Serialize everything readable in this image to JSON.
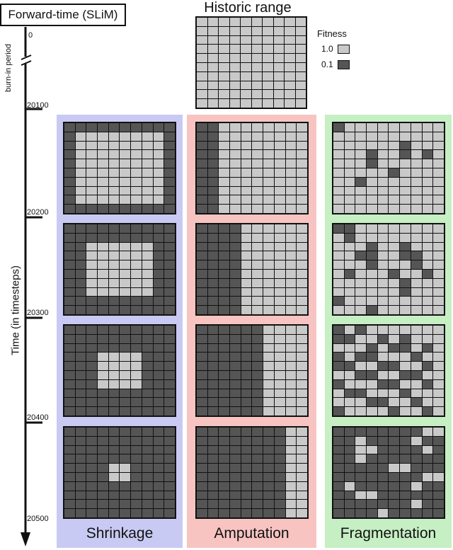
{
  "title": "Forward-time (SLiM)",
  "axis": {
    "label": "Time (in timesteps)",
    "burn_in": "burn-in period",
    "ticks": [
      "0",
      "20100",
      "20200",
      "20300",
      "20400",
      "20500"
    ]
  },
  "historic": {
    "title": "Historic range"
  },
  "legend": {
    "title": "Fitness",
    "items": [
      {
        "label": "1.0",
        "color": "#c9c9c9"
      },
      {
        "label": "0.1",
        "color": "#555555"
      }
    ]
  },
  "colors": {
    "shrinkage_bg": "#c9caf3",
    "amputation_bg": "#f7c4c2",
    "fragmentation_bg": "#c6efc3",
    "high_fitness": "#c9c9c9",
    "low_fitness": "#555555"
  },
  "scenarios": [
    {
      "name": "Shrinkage"
    },
    {
      "name": "Amputation"
    },
    {
      "name": "Fragmentation"
    }
  ]
}
